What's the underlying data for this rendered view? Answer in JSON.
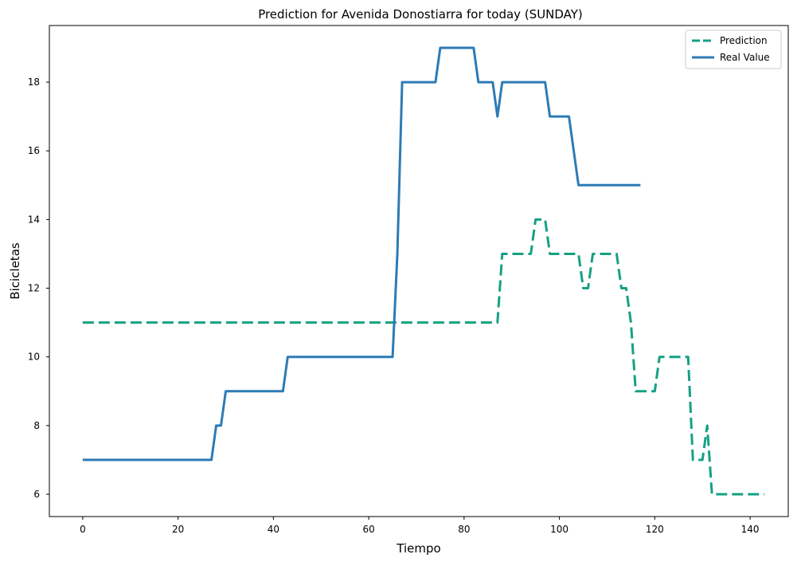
{
  "chart_data": {
    "type": "line",
    "title": "Prediction for Avenida Donostiarra for today (SUNDAY)",
    "xlabel": "Tiempo",
    "ylabel": "Bicicletas",
    "xlim": [
      -7,
      148
    ],
    "ylim": [
      5.35,
      19.65
    ],
    "xticks": [
      0,
      20,
      40,
      60,
      80,
      100,
      120,
      140
    ],
    "yticks": [
      6,
      8,
      10,
      12,
      14,
      16,
      18
    ],
    "grid": false,
    "legend_position": "top-right",
    "series": [
      {
        "name": "Prediction",
        "color": "#16a085",
        "style": "dashed",
        "points": [
          [
            0,
            11
          ],
          [
            87,
            11
          ],
          [
            88,
            13
          ],
          [
            94,
            13
          ],
          [
            95,
            14
          ],
          [
            97,
            14
          ],
          [
            98,
            13
          ],
          [
            104,
            13
          ],
          [
            105,
            12
          ],
          [
            106,
            12
          ],
          [
            107,
            13
          ],
          [
            112,
            13
          ],
          [
            113,
            12
          ],
          [
            114,
            12
          ],
          [
            115,
            11
          ],
          [
            116,
            9
          ],
          [
            120,
            9
          ],
          [
            121,
            10
          ],
          [
            127,
            10
          ],
          [
            128,
            7
          ],
          [
            130,
            7
          ],
          [
            131,
            8
          ],
          [
            132,
            6
          ],
          [
            143,
            6
          ]
        ]
      },
      {
        "name": "Real Value",
        "color": "#2c7bb6",
        "style": "solid",
        "points": [
          [
            0,
            7
          ],
          [
            27,
            7
          ],
          [
            28,
            8
          ],
          [
            29,
            8
          ],
          [
            30,
            9
          ],
          [
            42,
            9
          ],
          [
            43,
            10
          ],
          [
            65,
            10
          ],
          [
            66,
            13
          ],
          [
            67,
            18
          ],
          [
            74,
            18
          ],
          [
            75,
            19
          ],
          [
            82,
            19
          ],
          [
            83,
            18
          ],
          [
            86,
            18
          ],
          [
            87,
            17
          ],
          [
            88,
            18
          ],
          [
            97,
            18
          ],
          [
            98,
            17
          ],
          [
            102,
            17
          ],
          [
            103,
            16
          ],
          [
            104,
            15
          ],
          [
            117,
            15
          ]
        ]
      }
    ]
  }
}
